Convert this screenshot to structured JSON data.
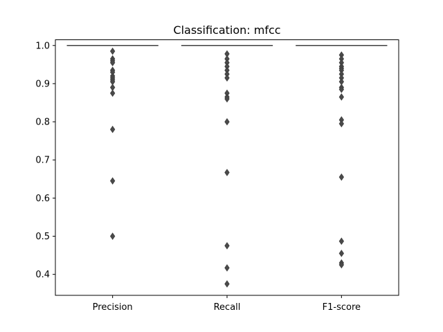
{
  "chart_data": {
    "type": "box",
    "title": "Classification: mfcc",
    "xlabel": "",
    "ylabel": "",
    "categories": [
      "Precision",
      "Recall",
      "F1-score"
    ],
    "ylim": [
      0.345,
      1.015
    ],
    "yticks": [
      0.4,
      0.5,
      0.6,
      0.7,
      0.8,
      0.9,
      1.0
    ],
    "ytick_labels": [
      "0.4",
      "0.5",
      "0.6",
      "0.7",
      "0.8",
      "0.9",
      "1.0"
    ],
    "grid": false,
    "legend": "none",
    "box_color": "#3a75b0",
    "edge_color": "#3f3f3f",
    "series": [
      {
        "category": "Precision",
        "box": {
          "whislo": 1.0,
          "q1": 1.0,
          "median": 1.0,
          "q3": 1.0,
          "whishi": 1.0
        },
        "outliers": [
          0.985,
          0.965,
          0.96,
          0.955,
          0.935,
          0.93,
          0.92,
          0.915,
          0.91,
          0.905,
          0.89,
          0.875,
          0.78,
          0.645,
          0.5
        ]
      },
      {
        "category": "Recall",
        "box": {
          "whislo": 1.0,
          "q1": 1.0,
          "median": 1.0,
          "q3": 1.0,
          "whishi": 1.0
        },
        "outliers": [
          0.978,
          0.965,
          0.955,
          0.945,
          0.935,
          0.925,
          0.915,
          0.875,
          0.865,
          0.86,
          0.8,
          0.667,
          0.475,
          0.417,
          0.375
        ]
      },
      {
        "category": "F1-score",
        "box": {
          "whislo": 1.0,
          "q1": 1.0,
          "median": 1.0,
          "q3": 1.0,
          "whishi": 1.0
        },
        "outliers": [
          0.975,
          0.965,
          0.955,
          0.945,
          0.94,
          0.935,
          0.925,
          0.915,
          0.905,
          0.89,
          0.885,
          0.865,
          0.805,
          0.795,
          0.655,
          0.487,
          0.455,
          0.43,
          0.425
        ]
      }
    ]
  }
}
